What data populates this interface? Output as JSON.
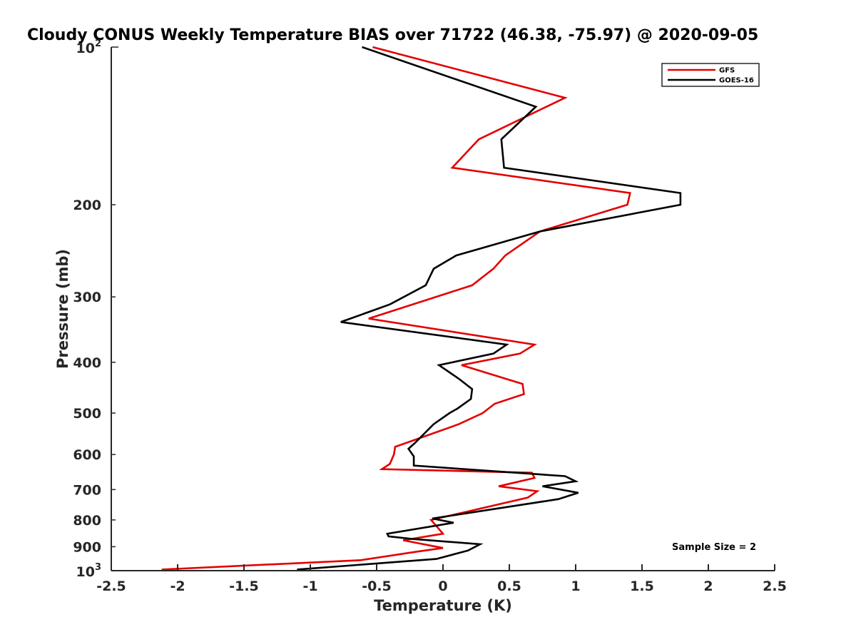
{
  "chart_data": {
    "type": "line",
    "title": "Cloudy CONUS Weekly Temperature BIAS over 71722 (46.38, -75.97) @ 2020-09-05",
    "xlabel": "Temperature (K)",
    "ylabel": "Pressure (mb)",
    "xlim": [
      -2.5,
      2.5
    ],
    "ylim": [
      100,
      1000
    ],
    "y_scale": "log",
    "y_reversed": true,
    "grid": false,
    "legend_position": "top-right",
    "x_ticks": [
      -2.5,
      -2,
      -1.5,
      -1,
      -0.5,
      0,
      0.5,
      1,
      1.5,
      2,
      2.5
    ],
    "x_tick_labels": [
      "-2.5",
      "-2",
      "-1.5",
      "-1",
      "-0.5",
      "0",
      "0.5",
      "1",
      "1.5",
      "2",
      "2.5"
    ],
    "y_ticks": [
      {
        "value": 100,
        "base": "10",
        "exp": "2",
        "label": ""
      },
      {
        "value": 200,
        "label": "200"
      },
      {
        "value": 300,
        "label": "300"
      },
      {
        "value": 400,
        "label": "400"
      },
      {
        "value": 500,
        "label": "500"
      },
      {
        "value": 600,
        "label": "600"
      },
      {
        "value": 700,
        "label": "700"
      },
      {
        "value": 800,
        "label": "800"
      },
      {
        "value": 900,
        "label": "900"
      },
      {
        "value": 1000,
        "base": "10",
        "exp": "3",
        "label": ""
      }
    ],
    "series": [
      {
        "name": "GFS",
        "color": "#e30000",
        "points": [
          [
            -0.53,
            100
          ],
          [
            0.92,
            125
          ],
          [
            0.27,
            150
          ],
          [
            0.07,
            170
          ],
          [
            1.41,
            190
          ],
          [
            1.39,
            200
          ],
          [
            0.73,
            225
          ],
          [
            0.47,
            250
          ],
          [
            0.38,
            265
          ],
          [
            0.22,
            285
          ],
          [
            -0.56,
            330
          ],
          [
            0.69,
            370
          ],
          [
            0.58,
            385
          ],
          [
            0.14,
            405
          ],
          [
            0.6,
            440
          ],
          [
            0.61,
            460
          ],
          [
            0.39,
            480
          ],
          [
            0.3,
            500
          ],
          [
            0.12,
            525
          ],
          [
            -0.36,
            580
          ],
          [
            -0.37,
            600
          ],
          [
            -0.4,
            625
          ],
          [
            -0.46,
            640
          ],
          [
            0.67,
            650
          ],
          [
            0.69,
            665
          ],
          [
            0.42,
            690
          ],
          [
            0.71,
            705
          ],
          [
            0.64,
            725
          ],
          [
            -0.09,
            800
          ],
          [
            0.0,
            850
          ],
          [
            -0.3,
            875
          ],
          [
            0.0,
            905
          ],
          [
            -0.2,
            920
          ],
          [
            -0.62,
            955
          ],
          [
            -2.12,
            995
          ]
        ]
      },
      {
        "name": "GOES-16",
        "color": "#000000",
        "points": [
          [
            -0.61,
            100
          ],
          [
            0.7,
            130
          ],
          [
            0.44,
            150
          ],
          [
            0.46,
            170
          ],
          [
            1.79,
            190
          ],
          [
            1.79,
            200
          ],
          [
            0.73,
            225
          ],
          [
            0.1,
            250
          ],
          [
            -0.07,
            265
          ],
          [
            -0.13,
            285
          ],
          [
            -0.4,
            310
          ],
          [
            -0.77,
            335
          ],
          [
            0.48,
            370
          ],
          [
            0.38,
            385
          ],
          [
            -0.03,
            405
          ],
          [
            0.12,
            430
          ],
          [
            0.22,
            450
          ],
          [
            0.21,
            470
          ],
          [
            0.11,
            490
          ],
          [
            0.05,
            500
          ],
          [
            -0.07,
            525
          ],
          [
            -0.21,
            570
          ],
          [
            -0.26,
            585
          ],
          [
            -0.22,
            605
          ],
          [
            -0.22,
            630
          ],
          [
            0.92,
            660
          ],
          [
            1.0,
            675
          ],
          [
            0.75,
            690
          ],
          [
            1.02,
            710
          ],
          [
            0.87,
            730
          ],
          [
            -0.08,
            795
          ],
          [
            0.08,
            810
          ],
          [
            -0.42,
            850
          ],
          [
            -0.41,
            860
          ],
          [
            -0.23,
            870
          ],
          [
            0.28,
            890
          ],
          [
            0.19,
            915
          ],
          [
            -0.05,
            950
          ],
          [
            -1.1,
            995
          ]
        ]
      }
    ],
    "annotation": "Sample Size = 2"
  }
}
